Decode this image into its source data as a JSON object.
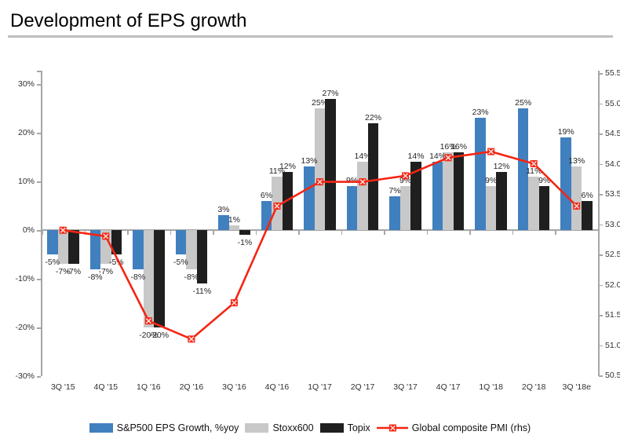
{
  "title": "Development of EPS growth",
  "style": {
    "axis_color": "#a6a6a6",
    "divider_color": "#bfbfbf",
    "label_color": "#262626",
    "background": "#ffffff"
  },
  "chart_data": {
    "type": "bar",
    "subtype": "grouped bars with overlaid line (dual axis)",
    "title": "Development of EPS growth",
    "categories": [
      "3Q '15",
      "4Q '15",
      "1Q '16",
      "2Q '16",
      "3Q '16",
      "4Q '16",
      "1Q '17",
      "2Q '17",
      "3Q '17",
      "4Q '17",
      "1Q '18",
      "2Q '18",
      "3Q '18e"
    ],
    "series": [
      {
        "name": "S&P500 EPS Growth, %yoy",
        "kind": "bar",
        "axis": "left",
        "color": "#4080bf",
        "values": [
          -5,
          -8,
          -8,
          -5,
          3,
          6,
          13,
          9,
          7,
          14,
          23,
          25,
          19
        ],
        "data_labels": [
          "-5%",
          "-8%",
          "-8%",
          "-5%",
          "3%",
          "6%",
          "13%",
          "9%",
          "7%",
          "14%",
          "23%",
          "25%",
          "19%"
        ]
      },
      {
        "name": "Stoxx600",
        "kind": "bar",
        "axis": "left",
        "color": "#c8c8c8",
        "values": [
          -7,
          -7,
          -20,
          -8,
          1,
          11,
          25,
          14,
          9,
          16,
          9,
          11,
          13
        ],
        "data_labels": [
          "-7%",
          "-7%",
          "-20%",
          "-8%",
          "1%",
          "11%",
          "25%",
          "14%",
          "9%",
          "16%",
          "9%",
          "11%",
          "13%"
        ]
      },
      {
        "name": "Topix",
        "kind": "bar",
        "axis": "left",
        "color": "#1f1f1f",
        "values": [
          -7,
          -5,
          -20,
          -11,
          -1,
          12,
          27,
          22,
          14,
          16,
          12,
          9,
          6
        ],
        "data_labels": [
          "-7%",
          "-5%",
          "-20%",
          "-11%",
          "-1%",
          "12%",
          "27%",
          "22%",
          "14%",
          "16%",
          "12%",
          "9%",
          "6%"
        ]
      },
      {
        "name": "Global composite PMI (rhs)",
        "kind": "line",
        "axis": "right",
        "color": "#f42513",
        "values": [
          52.9,
          52.8,
          51.4,
          51.1,
          51.7,
          53.3,
          53.7,
          53.7,
          53.8,
          54.1,
          54.2,
          54.0,
          53.3
        ]
      }
    ],
    "left_axis": {
      "min": -30,
      "max": 30,
      "tick_step": 10,
      "format": "percent",
      "tick_labels": [
        "30%",
        "20%",
        "10%",
        "0%",
        "-10%",
        "-20%",
        "-30%"
      ]
    },
    "right_axis": {
      "min": 50.5,
      "max": 55.5,
      "tick_step": 0.5,
      "tick_labels": [
        "55.5",
        "55.0",
        "54.5",
        "54.0",
        "53.5",
        "53.0",
        "52.5",
        "52.0",
        "51.5",
        "51.0",
        "50.5"
      ]
    },
    "grid": false,
    "legend_position": "bottom"
  }
}
